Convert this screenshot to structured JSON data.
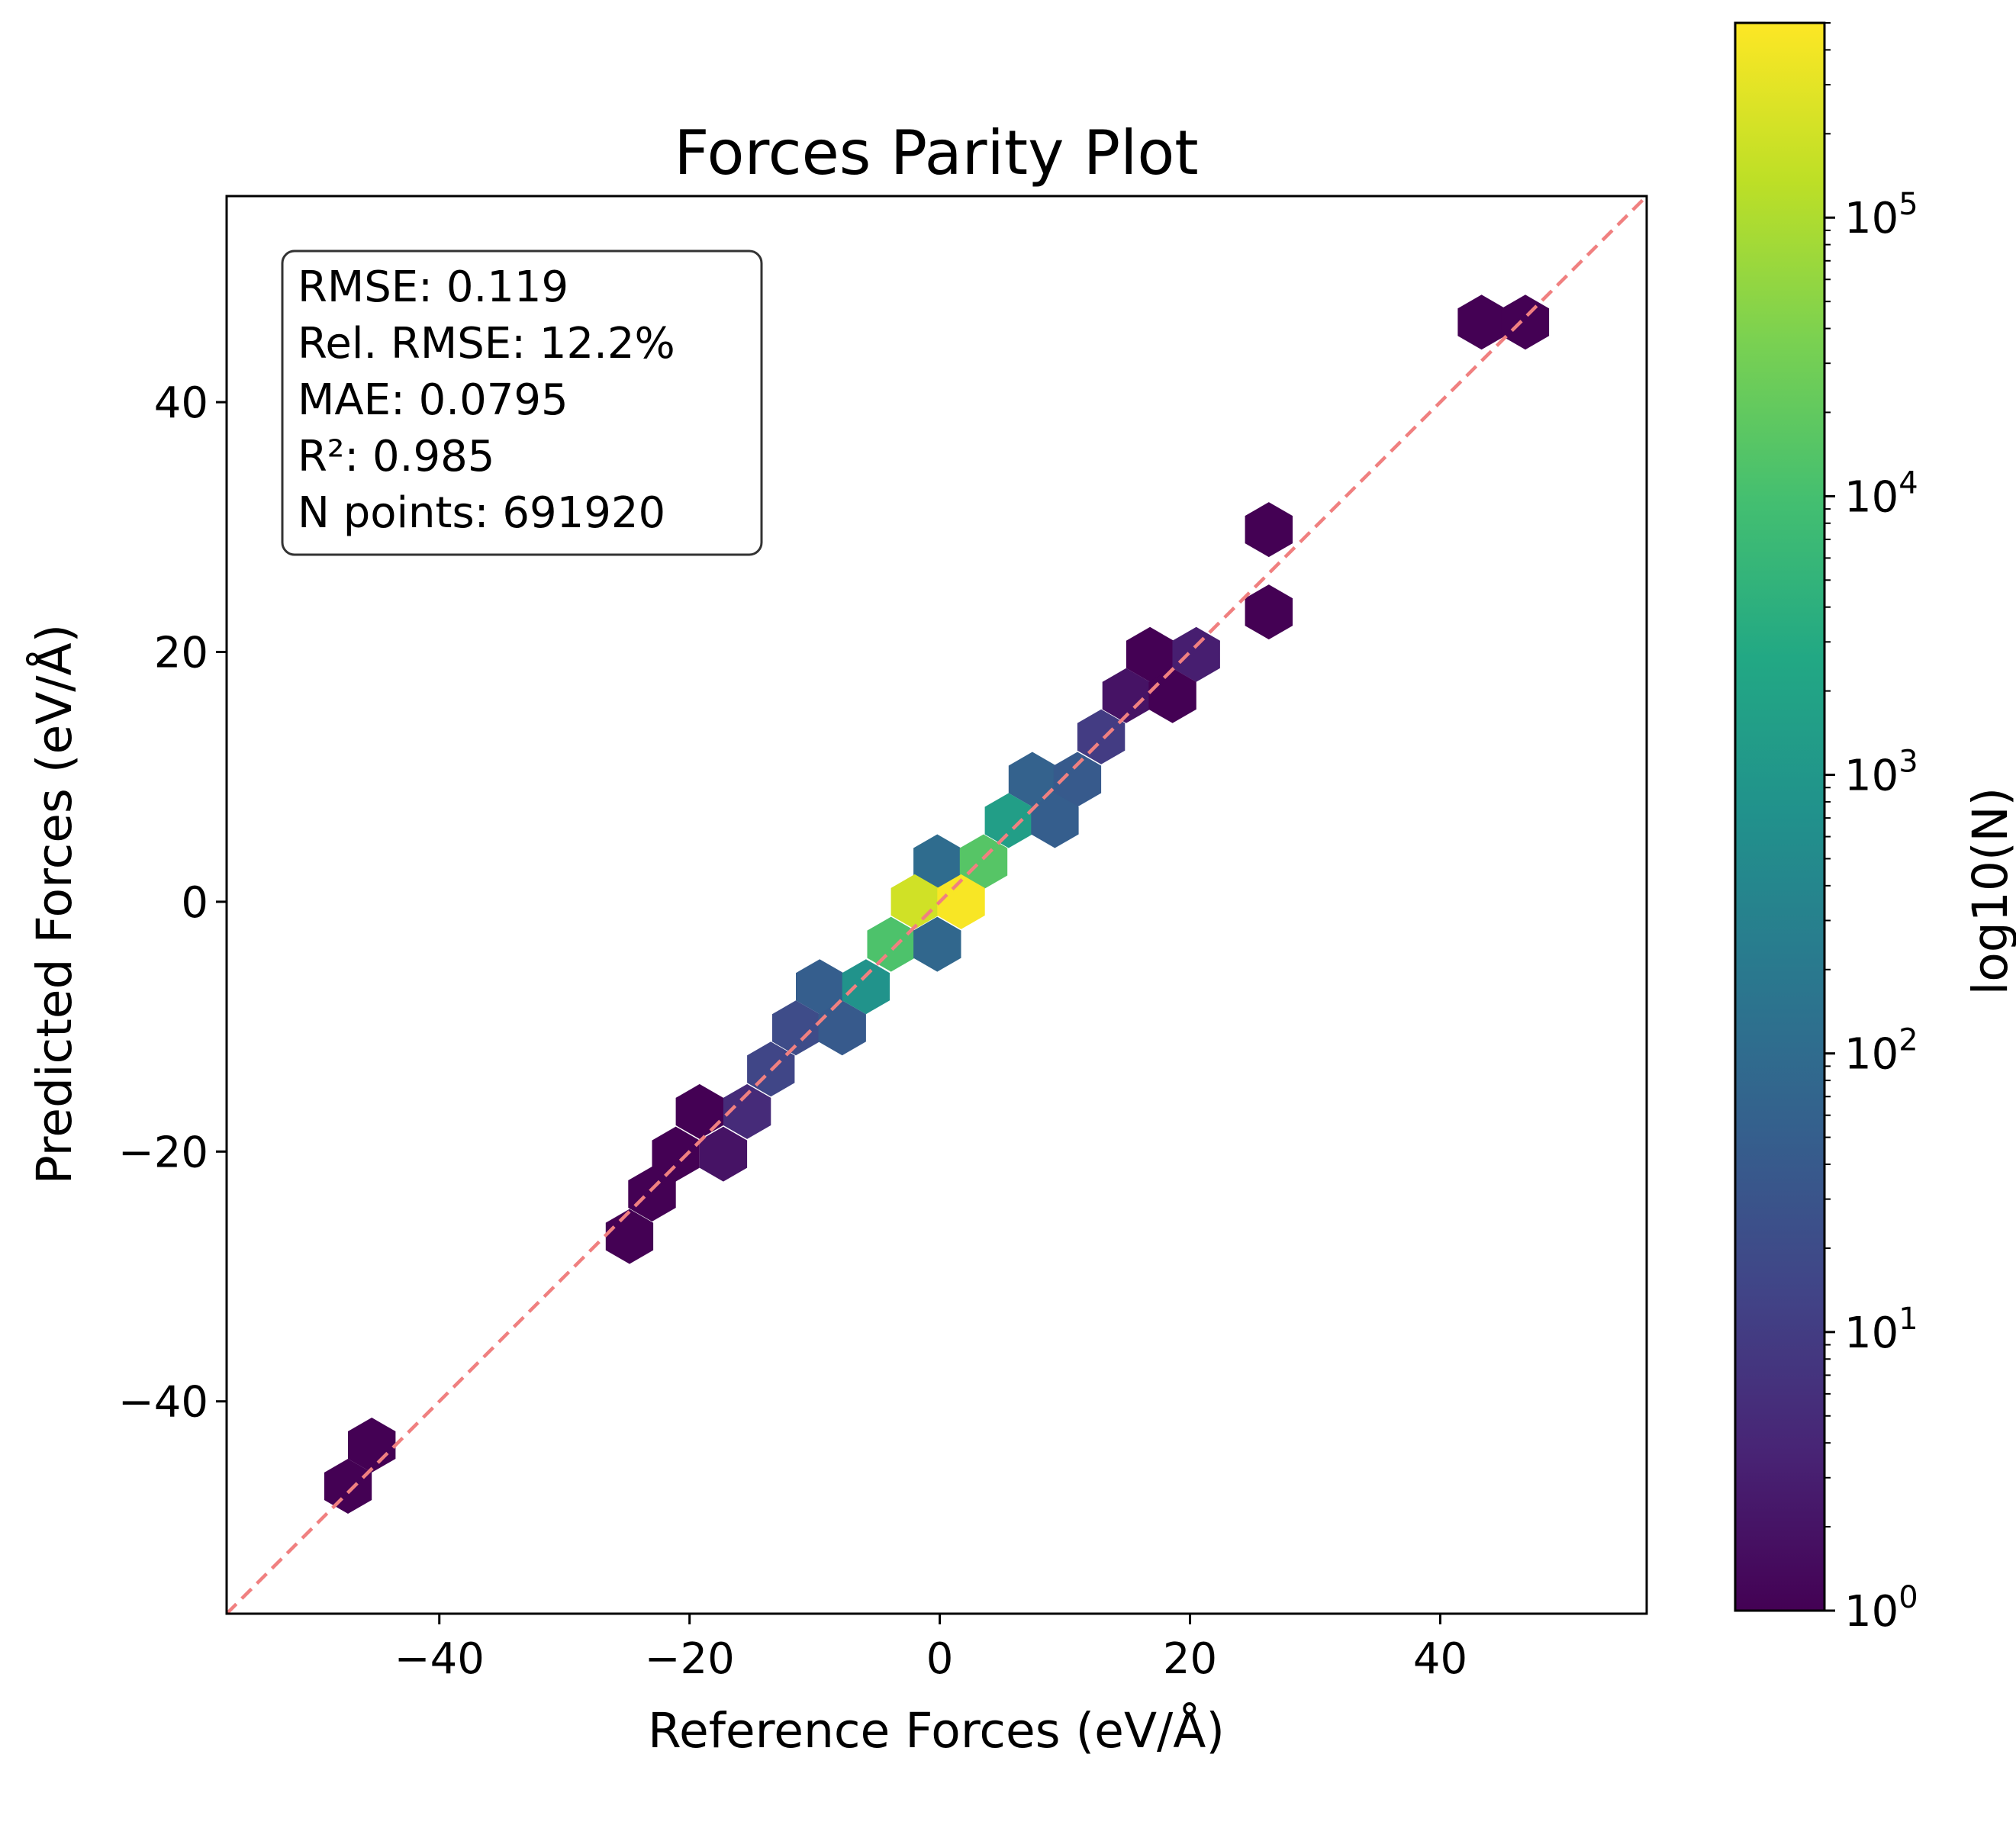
{
  "chart_data": {
    "type": "hexbin",
    "title": "Forces Parity Plot",
    "xlabel": "Reference Forces (eV/Å)",
    "ylabel": "Predicted Forces (eV/Å)",
    "xlim": [
      -57,
      56.5
    ],
    "ylim": [
      -57,
      56.5
    ],
    "x_ticks": [
      -40,
      -20,
      0,
      20,
      40
    ],
    "y_ticks": [
      -40,
      -20,
      0,
      20,
      40
    ],
    "x_tick_labels": [
      "−40",
      "−20",
      "0",
      "20",
      "40"
    ],
    "y_tick_labels": [
      "−40",
      "−20",
      "0",
      "20",
      "40"
    ],
    "reference_line": {
      "style": "dashed",
      "color": "#f08080",
      "equation": "y = x"
    },
    "stats": [
      "RMSE: 0.119",
      "Rel. RMSE: 12.2%",
      "MAE: 0.0795",
      "R²: 0.985",
      "N points: 691920"
    ],
    "colorbar": {
      "label": "log10(N)",
      "scale": "log",
      "range": [
        1,
        500000
      ],
      "ticks": [
        {
          "value": 1,
          "base": "10",
          "exp": "0"
        },
        {
          "value": 10,
          "base": "10",
          "exp": "1"
        },
        {
          "value": 100,
          "base": "10",
          "exp": "2"
        },
        {
          "value": 1000,
          "base": "10",
          "exp": "3"
        },
        {
          "value": 10000,
          "base": "10",
          "exp": "4"
        },
        {
          "value": 100000,
          "base": "10",
          "exp": "5"
        }
      ],
      "colormap": "viridis"
    },
    "hex_bins": [
      {
        "x": 43.3,
        "y": 46.4,
        "count": 1
      },
      {
        "x": 46.8,
        "y": 46.4,
        "count": 1
      },
      {
        "x": 26.3,
        "y": 29.8,
        "count": 1
      },
      {
        "x": 26.3,
        "y": 23.2,
        "count": 1
      },
      {
        "x": 16.8,
        "y": 19.8,
        "count": 1
      },
      {
        "x": 20.5,
        "y": 19.8,
        "count": 3
      },
      {
        "x": 14.9,
        "y": 16.5,
        "count": 2
      },
      {
        "x": 18.6,
        "y": 16.5,
        "count": 1
      },
      {
        "x": 12.9,
        "y": 13.2,
        "count": 10
      },
      {
        "x": 7.4,
        "y": 9.8,
        "count": 60
      },
      {
        "x": 11.0,
        "y": 9.8,
        "count": 40
      },
      {
        "x": 5.5,
        "y": 6.5,
        "count": 1500
      },
      {
        "x": 9.2,
        "y": 6.5,
        "count": 50
      },
      {
        "x": -0.2,
        "y": 3.2,
        "count": 100
      },
      {
        "x": 3.5,
        "y": 3.2,
        "count": 15000
      },
      {
        "x": -2.0,
        "y": 0.0,
        "count": 200000
      },
      {
        "x": 1.7,
        "y": 0.0,
        "count": 450000
      },
      {
        "x": -3.9,
        "y": -3.4,
        "count": 12000
      },
      {
        "x": -0.2,
        "y": -3.4,
        "count": 80
      },
      {
        "x": -9.6,
        "y": -6.8,
        "count": 50
      },
      {
        "x": -5.9,
        "y": -6.8,
        "count": 800
      },
      {
        "x": -11.5,
        "y": -10.1,
        "count": 20
      },
      {
        "x": -7.8,
        "y": -10.1,
        "count": 40
      },
      {
        "x": -13.5,
        "y": -13.4,
        "count": 15
      },
      {
        "x": -19.2,
        "y": -16.8,
        "count": 1
      },
      {
        "x": -15.4,
        "y": -16.8,
        "count": 5
      },
      {
        "x": -21.1,
        "y": -20.2,
        "count": 1
      },
      {
        "x": -17.3,
        "y": -20.2,
        "count": 2
      },
      {
        "x": -23.0,
        "y": -23.4,
        "count": 1
      },
      {
        "x": -24.8,
        "y": -26.8,
        "count": 1
      },
      {
        "x": -45.4,
        "y": -43.5,
        "count": 1
      },
      {
        "x": -47.3,
        "y": -46.8,
        "count": 1
      }
    ]
  }
}
